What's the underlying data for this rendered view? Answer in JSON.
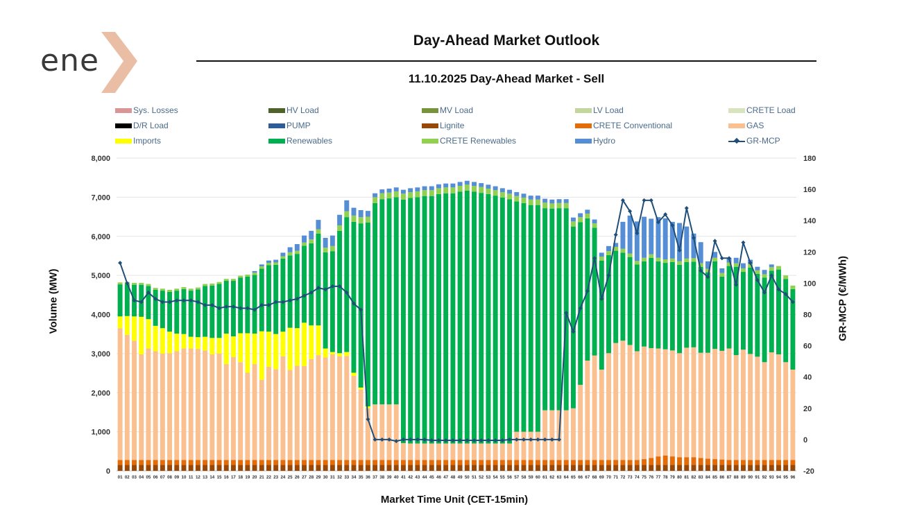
{
  "header": {
    "logo_text": "ene",
    "title": "Day-Ahead Market Outlook",
    "subtitle": "11.10.2025  Day-Ahead Market - Sell"
  },
  "chart_data": {
    "type": "bar",
    "stacked": true,
    "xlabel": "Market Time Unit (CET-15min)",
    "ylabel": "Volume (MW)",
    "y2label": "GR-MCP (€/MWh)",
    "ylim": [
      0,
      8000
    ],
    "y2lim": [
      -20,
      180
    ],
    "y_ticks": [
      "0",
      "1,000",
      "2,000",
      "3,000",
      "4,000",
      "5,000",
      "6,000",
      "7,000",
      "8,000"
    ],
    "y2_ticks": [
      "-20",
      "0",
      "20",
      "40",
      "60",
      "80",
      "100",
      "120",
      "140",
      "160",
      "180"
    ],
    "grid": true,
    "legend_position": "top",
    "categories": [
      "01",
      "02",
      "03",
      "04",
      "05",
      "06",
      "07",
      "08",
      "09",
      "10",
      "11",
      "12",
      "13",
      "14",
      "15",
      "16",
      "17",
      "18",
      "19",
      "20",
      "21",
      "22",
      "23",
      "24",
      "25",
      "26",
      "27",
      "28",
      "29",
      "30",
      "31",
      "32",
      "33",
      "34",
      "35",
      "36",
      "37",
      "38",
      "39",
      "40",
      "41",
      "42",
      "43",
      "44",
      "45",
      "46",
      "47",
      "48",
      "49",
      "50",
      "51",
      "52",
      "53",
      "54",
      "55",
      "56",
      "57",
      "58",
      "59",
      "60",
      "61",
      "62",
      "63",
      "64",
      "65",
      "66",
      "67",
      "68",
      "69",
      "70",
      "71",
      "72",
      "73",
      "74",
      "75",
      "76",
      "77",
      "78",
      "79",
      "80",
      "81",
      "82",
      "83",
      "84",
      "85",
      "86",
      "87",
      "88",
      "89",
      "90",
      "91",
      "92",
      "93",
      "94",
      "95",
      "96"
    ],
    "legend": [
      {
        "name": "Sys. Losses",
        "color": "#d99694",
        "kind": "bar"
      },
      {
        "name": "HV Load",
        "color": "#4f6228",
        "kind": "bar"
      },
      {
        "name": "MV Load",
        "color": "#77933c",
        "kind": "bar"
      },
      {
        "name": "LV Load",
        "color": "#c3d69b",
        "kind": "bar"
      },
      {
        "name": "CRETE Load",
        "color": "#d7e4bd",
        "kind": "bar"
      },
      {
        "name": "D/R Load",
        "color": "#000000",
        "kind": "bar"
      },
      {
        "name": "PUMP",
        "color": "#2e5c9a",
        "kind": "bar"
      },
      {
        "name": "Lignite",
        "color": "#974706",
        "kind": "bar"
      },
      {
        "name": "CRETE Conventional",
        "color": "#e36c09",
        "kind": "bar"
      },
      {
        "name": "GAS",
        "color": "#fac090",
        "kind": "bar"
      },
      {
        "name": "Imports",
        "color": "#ffff00",
        "kind": "bar"
      },
      {
        "name": "Renewables",
        "color": "#00b050",
        "kind": "bar"
      },
      {
        "name": "CRETE Renewables",
        "color": "#92d050",
        "kind": "bar"
      },
      {
        "name": "Hydro",
        "color": "#558ed5",
        "kind": "bar"
      },
      {
        "name": "GR-MCP",
        "color": "#1f4e79",
        "kind": "line"
      }
    ],
    "series": [
      {
        "name": "Lignite",
        "color": "#974706",
        "values": [
          150,
          150,
          150,
          150,
          150,
          150,
          150,
          150,
          150,
          150,
          150,
          150,
          150,
          150,
          150,
          150,
          150,
          150,
          150,
          150,
          150,
          150,
          150,
          150,
          150,
          150,
          150,
          150,
          150,
          150,
          150,
          150,
          150,
          150,
          150,
          150,
          150,
          150,
          150,
          150,
          150,
          150,
          150,
          150,
          150,
          150,
          150,
          150,
          150,
          150,
          150,
          150,
          150,
          150,
          150,
          150,
          150,
          150,
          150,
          150,
          150,
          150,
          150,
          150,
          150,
          150,
          150,
          150,
          150,
          150,
          150,
          150,
          150,
          150,
          150,
          150,
          150,
          150,
          150,
          150,
          150,
          150,
          150,
          150,
          150,
          150,
          150,
          150,
          150,
          150,
          150,
          150,
          150,
          150,
          150,
          150
        ]
      },
      {
        "name": "CRETE Conventional",
        "color": "#e36c09",
        "values": [
          130,
          130,
          130,
          130,
          130,
          130,
          130,
          130,
          130,
          130,
          130,
          130,
          130,
          130,
          130,
          130,
          130,
          130,
          130,
          130,
          130,
          130,
          130,
          130,
          130,
          130,
          130,
          130,
          130,
          130,
          130,
          130,
          130,
          130,
          130,
          130,
          130,
          130,
          130,
          130,
          130,
          130,
          130,
          130,
          130,
          130,
          130,
          130,
          130,
          130,
          130,
          130,
          130,
          130,
          130,
          130,
          130,
          130,
          130,
          130,
          130,
          130,
          130,
          130,
          130,
          130,
          130,
          130,
          130,
          130,
          130,
          130,
          130,
          130,
          150,
          180,
          220,
          240,
          220,
          200,
          200,
          200,
          180,
          160,
          150,
          140,
          130,
          130,
          130,
          130,
          130,
          130,
          130,
          130,
          130,
          130
        ]
      },
      {
        "name": "GAS",
        "color": "#fac090",
        "values": [
          3370,
          3200,
          3050,
          2700,
          2850,
          2780,
          2720,
          2730,
          2780,
          2850,
          2850,
          2840,
          2800,
          2700,
          2720,
          2450,
          2630,
          2500,
          2230,
          2450,
          2050,
          2380,
          2320,
          2650,
          2300,
          2410,
          2400,
          2580,
          2680,
          2620,
          2700,
          2650,
          2660,
          2150,
          1800,
          1320,
          1420,
          1420,
          1420,
          1420,
          430,
          420,
          420,
          420,
          420,
          420,
          420,
          420,
          420,
          420,
          420,
          420,
          420,
          420,
          420,
          420,
          720,
          720,
          720,
          720,
          1270,
          1270,
          1270,
          1270,
          1320,
          1920,
          2540,
          2670,
          2310,
          2730,
          2990,
          3050,
          2940,
          2780,
          2880,
          2810,
          2760,
          2720,
          2710,
          2660,
          2800,
          2810,
          2690,
          2710,
          2820,
          2780,
          2850,
          2680,
          2820,
          2710,
          2640,
          2500,
          2750,
          2700,
          2500,
          2310
        ]
      },
      {
        "name": "Imports",
        "color": "#ffff00",
        "values": [
          300,
          480,
          620,
          960,
          750,
          650,
          650,
          550,
          450,
          370,
          300,
          300,
          350,
          420,
          400,
          780,
          530,
          740,
          1010,
          780,
          1240,
          900,
          900,
          630,
          1080,
          960,
          1110,
          860,
          760,
          230,
          60,
          80,
          100,
          80,
          50,
          50,
          0,
          0,
          0,
          0,
          0,
          0,
          0,
          0,
          0,
          0,
          0,
          0,
          0,
          0,
          0,
          0,
          0,
          0,
          0,
          0,
          0,
          0,
          0,
          0,
          0,
          0,
          0,
          0,
          0,
          0,
          0,
          0,
          0,
          0,
          0,
          0,
          0,
          0,
          0,
          0,
          0,
          0,
          0,
          0,
          0,
          0,
          0,
          0,
          0,
          0,
          0,
          0,
          0,
          0,
          0,
          0,
          0,
          0,
          0,
          0
        ]
      },
      {
        "name": "Renewables",
        "color": "#00b050",
        "values": [
          820,
          820,
          810,
          820,
          850,
          920,
          960,
          1020,
          1100,
          1150,
          1180,
          1220,
          1300,
          1340,
          1380,
          1350,
          1420,
          1420,
          1450,
          1500,
          1600,
          1700,
          1770,
          1870,
          1850,
          1900,
          1970,
          2100,
          2350,
          2460,
          2580,
          3130,
          3450,
          3860,
          4200,
          4700,
          5150,
          5250,
          5270,
          5300,
          6230,
          6280,
          6300,
          6330,
          6330,
          6380,
          6400,
          6400,
          6440,
          6470,
          6440,
          6410,
          6380,
          6340,
          6290,
          6250,
          5890,
          5850,
          5800,
          5800,
          5170,
          5160,
          5170,
          5170,
          4650,
          4160,
          3640,
          3270,
          2790,
          2510,
          2360,
          2250,
          2250,
          2220,
          2180,
          2310,
          2230,
          2210,
          2260,
          2260,
          2190,
          2190,
          2200,
          2060,
          2240,
          1900,
          2110,
          2260,
          1990,
          2210,
          2120,
          2160,
          2090,
          2170,
          2130,
          2060
        ]
      },
      {
        "name": "CRETE Renewables",
        "color": "#92d050",
        "values": [
          50,
          50,
          50,
          50,
          50,
          50,
          50,
          50,
          50,
          50,
          50,
          50,
          50,
          50,
          50,
          50,
          50,
          50,
          50,
          60,
          60,
          60,
          60,
          60,
          80,
          80,
          80,
          100,
          110,
          120,
          130,
          140,
          150,
          160,
          160,
          150,
          150,
          150,
          150,
          150,
          150,
          150,
          150,
          150,
          150,
          150,
          150,
          150,
          150,
          150,
          150,
          150,
          140,
          140,
          140,
          140,
          140,
          140,
          140,
          140,
          140,
          130,
          130,
          130,
          130,
          130,
          120,
          110,
          100,
          100,
          100,
          100,
          90,
          90,
          90,
          90,
          90,
          90,
          90,
          90,
          90,
          90,
          90,
          90,
          90,
          90,
          90,
          90,
          90,
          90,
          90,
          90,
          90,
          90,
          90,
          90
        ]
      },
      {
        "name": "Hydro",
        "color": "#558ed5",
        "values": [
          0,
          0,
          0,
          0,
          0,
          0,
          0,
          0,
          0,
          0,
          0,
          0,
          0,
          0,
          0,
          0,
          0,
          0,
          0,
          40,
          50,
          60,
          70,
          90,
          130,
          170,
          180,
          220,
          240,
          250,
          270,
          270,
          280,
          200,
          180,
          150,
          100,
          100,
          100,
          100,
          100,
          100,
          100,
          100,
          100,
          100,
          100,
          100,
          100,
          100,
          100,
          100,
          100,
          100,
          100,
          100,
          100,
          100,
          100,
          100,
          100,
          100,
          100,
          100,
          100,
          100,
          100,
          100,
          100,
          130,
          100,
          690,
          970,
          1010,
          1050,
          910,
          1040,
          1050,
          940,
          980,
          820,
          630,
          540,
          190,
          150,
          120,
          120,
          140,
          130,
          110,
          90,
          110,
          70,
          0,
          0,
          0
        ]
      }
    ],
    "line": {
      "name": "GR-MCP",
      "color": "#1f4e79",
      "values": [
        113,
        100,
        89,
        88,
        94,
        90,
        88,
        88,
        89,
        89,
        89,
        88,
        86,
        86,
        84,
        85,
        85,
        84,
        84,
        83,
        86,
        86,
        88,
        88,
        89,
        90,
        92,
        94,
        97,
        96,
        98,
        98,
        94,
        87,
        83,
        13,
        0,
        0,
        0,
        -1,
        0,
        0,
        0,
        0,
        -0.5,
        -0.5,
        -0.5,
        -0.5,
        -0.5,
        -0.5,
        -0.5,
        -0.5,
        -0.5,
        -0.5,
        -0.5,
        0,
        0,
        0,
        0,
        0,
        0,
        0,
        0,
        81,
        69,
        84,
        95,
        116,
        90,
        105,
        131,
        153,
        146,
        132,
        153,
        153,
        139,
        144,
        137,
        121,
        148,
        129,
        108,
        104,
        127,
        116,
        116,
        99,
        126,
        113,
        102,
        94,
        105,
        96,
        93,
        88
      ]
    }
  }
}
